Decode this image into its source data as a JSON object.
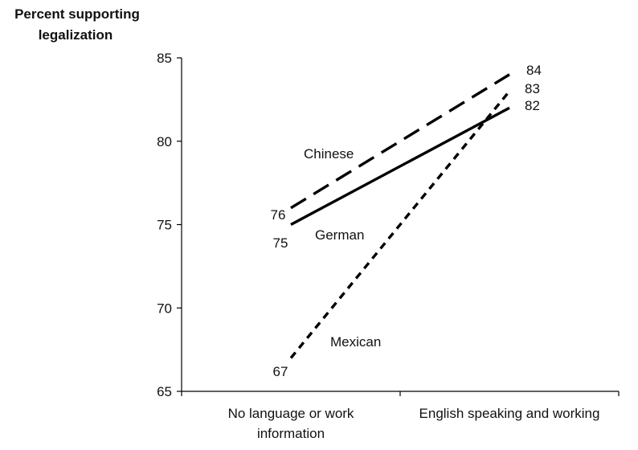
{
  "chart_data": {
    "type": "line",
    "ylabel": [
      "Percent supporting",
      "legalization"
    ],
    "xlabel": "",
    "ylim": [
      65,
      85
    ],
    "yticks": [
      "65",
      "70",
      "75",
      "80",
      "85"
    ],
    "categories": [
      [
        "No language or work",
        "information"
      ],
      [
        "English speaking and working"
      ]
    ],
    "series": [
      {
        "name": "Chinese",
        "values": [
          76,
          84
        ],
        "dash": "long-dash",
        "color": "#000000"
      },
      {
        "name": "German",
        "values": [
          75,
          82
        ],
        "dash": "solid",
        "color": "#000000"
      },
      {
        "name": "Mexican",
        "values": [
          67,
          83
        ],
        "dash": "short-dash",
        "color": "#000000"
      }
    ],
    "grid": false,
    "legend": "inline labels"
  }
}
